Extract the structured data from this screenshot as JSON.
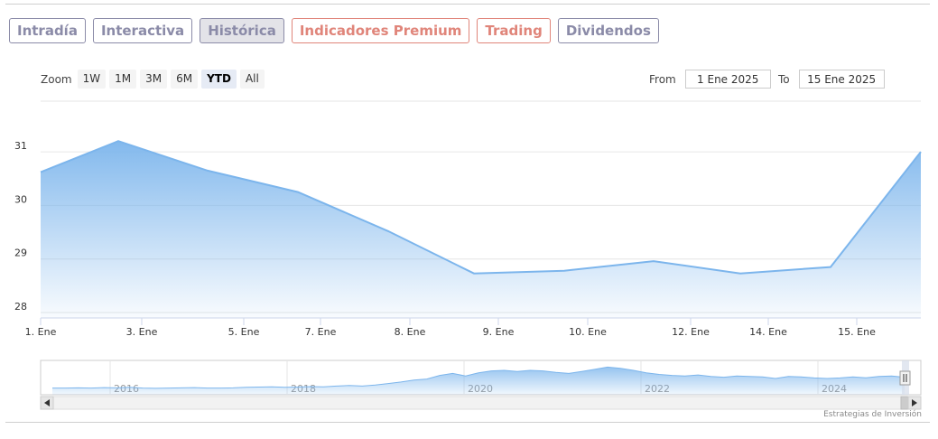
{
  "tabs": [
    {
      "label": "Intradía",
      "color": "#8b8ba8",
      "active": false
    },
    {
      "label": "Interactiva",
      "color": "#8b8ba8",
      "active": false
    },
    {
      "label": "Histórica",
      "color": "#8b8ba8",
      "active": true
    },
    {
      "label": "Indicadores Premium",
      "color": "#e0857a",
      "active": false
    },
    {
      "label": "Trading",
      "color": "#e0857a",
      "active": false
    },
    {
      "label": "Dividendos",
      "color": "#8b8ba8",
      "active": false
    }
  ],
  "zoom": {
    "label": "Zoom",
    "buttons": [
      "1W",
      "1M",
      "3M",
      "6M",
      "YTD",
      "All"
    ],
    "selected": "YTD"
  },
  "range": {
    "from_label": "From",
    "from_value": "1 Ene 2025",
    "to_label": "To",
    "to_value": "15 Ene 2025"
  },
  "credits": "Estrategias de Inversión",
  "chart_data": {
    "type": "area",
    "x_ticks": [
      "1. Ene",
      "3. Ene",
      "5. Ene",
      "7. Ene",
      "8. Ene",
      "9. Ene",
      "10. Ene",
      "12. Ene",
      "14. Ene",
      "15. Ene"
    ],
    "y_ticks": [
      28,
      29,
      30,
      31
    ],
    "ylim": [
      28,
      31.2
    ],
    "values": [
      30.62,
      31.2,
      30.65,
      30.25,
      29.52,
      28.73,
      28.78,
      28.96,
      28.73,
      28.85,
      31.0
    ],
    "grid": true,
    "legend": "none",
    "line_color": "#7cb5ec",
    "navigator": {
      "year_labels": [
        "2016",
        "2018",
        "2020",
        "2022",
        "2024"
      ],
      "series": [
        0.12,
        0.12,
        0.13,
        0.12,
        0.14,
        0.13,
        0.15,
        0.12,
        0.11,
        0.12,
        0.13,
        0.14,
        0.12,
        0.12,
        0.13,
        0.15,
        0.16,
        0.17,
        0.15,
        0.16,
        0.18,
        0.17,
        0.2,
        0.22,
        0.2,
        0.24,
        0.3,
        0.36,
        0.44,
        0.48,
        0.62,
        0.7,
        0.6,
        0.72,
        0.8,
        0.82,
        0.78,
        0.82,
        0.8,
        0.74,
        0.7,
        0.78,
        0.86,
        0.95,
        0.9,
        0.82,
        0.72,
        0.66,
        0.62,
        0.6,
        0.64,
        0.58,
        0.55,
        0.6,
        0.58,
        0.56,
        0.5,
        0.58,
        0.56,
        0.52,
        0.5,
        0.52,
        0.56,
        0.53,
        0.58,
        0.6,
        0.55
      ],
      "color": "#7cb5ec"
    }
  }
}
